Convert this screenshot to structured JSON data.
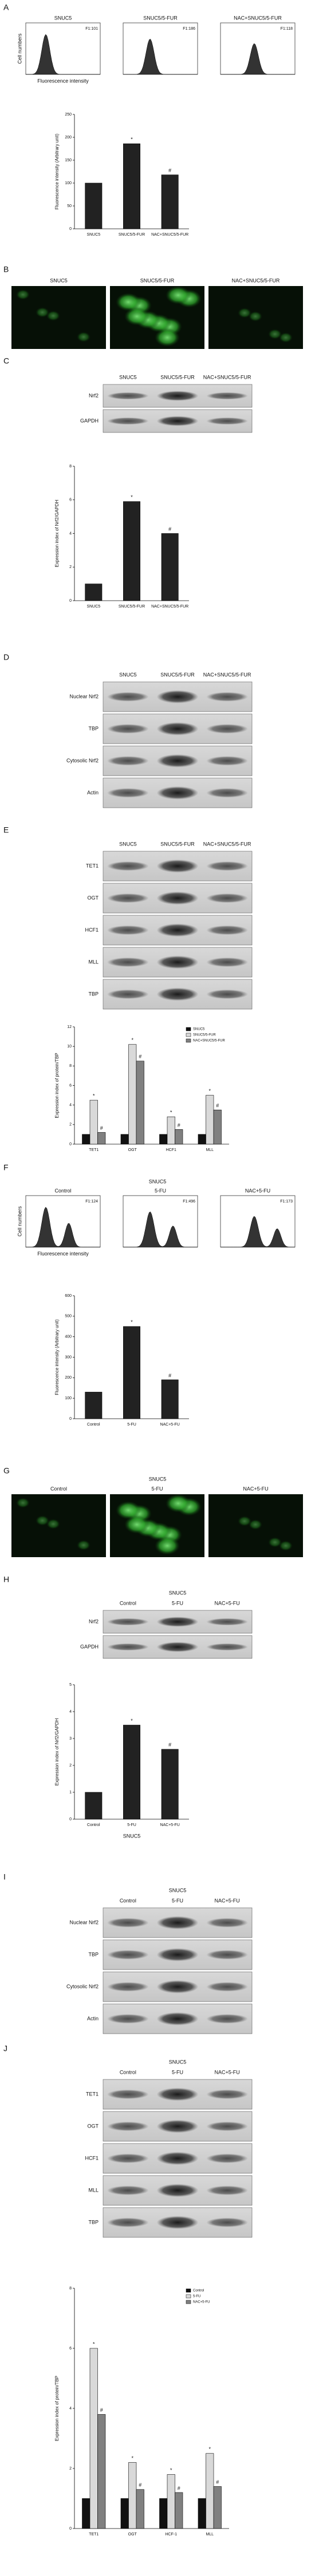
{
  "labels": [
    "A",
    "B",
    "C",
    "D",
    "E",
    "F",
    "G",
    "H",
    "I",
    "J"
  ],
  "histograms": [
    {
      "ylabel": "Cell numbers",
      "xlabel": "Fluorescence intensity",
      "plots": [
        {
          "title": "SNUC5",
          "stat": "F1:101"
        },
        {
          "title": "SNUC5/5-FUR",
          "stat": "F1:186"
        },
        {
          "title": "NAC+SNUC5/5-FUR",
          "stat": "F1:118"
        }
      ]
    },
    {
      "header": "SNUC5",
      "ylabel": "Cell numbers",
      "xlabel": "Fluorescence intensity",
      "plots": [
        {
          "title": "Control",
          "stat": "F1:124"
        },
        {
          "title": "5-FU",
          "stat": "F1:496"
        },
        {
          "title": "NAC+5-FU",
          "stat": "F1:173"
        }
      ]
    }
  ],
  "micrographs": [
    {
      "titles": [
        "SNUC5",
        "SNUC5/5-FUR",
        "NAC+SNUC5/5-FUR"
      ]
    },
    {
      "header": "SNUC5",
      "titles": [
        "Control",
        "5-FU",
        "NAC+5-FU"
      ]
    }
  ],
  "blots": [
    {
      "lanes": [
        "SNUC5",
        "SNUC5/5-FUR",
        "NAC+SNUC5/5-FUR"
      ],
      "rows": [
        "Nrf2",
        "GAPDH"
      ]
    },
    {
      "lanes": [
        "SNUC5",
        "SNUC5/5-FUR",
        "NAC+SNUC5/5-FUR"
      ],
      "rows": [
        "Nuclear Nrf2",
        "TBP",
        "Cytosolic Nrf2",
        "Actin"
      ]
    },
    {
      "lanes": [
        "SNUC5",
        "SNUC5/5-FUR",
        "NAC+SNUC5/5-FUR"
      ],
      "rows": [
        "TET1",
        "OGT",
        "HCF1",
        "MLL",
        "TBP"
      ]
    },
    {
      "header": "SNUC5",
      "lanes": [
        "Control",
        "5-FU",
        "NAC+5-FU"
      ],
      "rows": [
        "Nrf2",
        "GAPDH"
      ]
    },
    {
      "header": "SNUC5",
      "lanes": [
        "Control",
        "5-FU",
        "NAC+5-FU"
      ],
      "rows": [
        "Nuclear Nrf2",
        "TBP",
        "Cytosolic Nrf2",
        "Actin"
      ]
    },
    {
      "header": "SNUC5",
      "lanes": [
        "Control",
        "5-FU",
        "NAC+5-FU"
      ],
      "rows": [
        "TET1",
        "OGT",
        "HCF1",
        "MLL",
        "TBP"
      ]
    }
  ],
  "chart_data": [
    {
      "type": "bar",
      "ylabel": "Fluorescence intensity (Arbitrary unit)",
      "categories": [
        "SNUC5",
        "SNUC5/5-FUR",
        "NAC+SNUC5/5-FUR"
      ],
      "values": [
        100,
        186,
        118
      ],
      "color": "#222222",
      "markers": [
        null,
        "*",
        "#"
      ],
      "ylim": [
        0,
        250
      ],
      "yticks": [
        0,
        50,
        100,
        150,
        200,
        250
      ]
    },
    {
      "type": "bar",
      "ylabel": "Expression index of Nrf2/GAPDH",
      "categories": [
        "SNUC5",
        "SNUC5/5-FUR",
        "NAC+SNUC5/5-FUR"
      ],
      "values": [
        1,
        5.9,
        4
      ],
      "color": "#222222",
      "markers": [
        null,
        "*",
        "#"
      ],
      "ylim": [
        0,
        8
      ],
      "yticks": [
        0,
        2,
        4,
        6,
        8
      ]
    },
    {
      "type": "bar",
      "ylabel": "Expression index of protein/TBP",
      "categories": [
        "TET1",
        "OGT",
        "HCF1",
        "MLL"
      ],
      "series": [
        {
          "name": "SNUC5",
          "color": "#111111",
          "values": [
            1,
            1,
            1,
            1
          ],
          "markers": [
            null,
            null,
            null,
            null
          ]
        },
        {
          "name": "SNUC5/5-FUR",
          "color": "#d9d9d9",
          "values": [
            4.5,
            10.2,
            2.8,
            5
          ],
          "markers": [
            "*",
            "*",
            "*",
            "*"
          ]
        },
        {
          "name": "NAC+SNUC5/5-FUR",
          "color": "#808080",
          "values": [
            1.2,
            8.5,
            1.5,
            3.5
          ],
          "markers": [
            "#",
            "#",
            "#",
            "#"
          ]
        }
      ],
      "ylim": [
        0,
        12
      ],
      "yticks": [
        0,
        2,
        4,
        6,
        8,
        10,
        12
      ]
    },
    {
      "type": "bar",
      "ylabel": "Fluorescence intensity (Arbitrary unit)",
      "categories": [
        "Control",
        "5-FU",
        "NAC+5-FU"
      ],
      "values": [
        130,
        450,
        190
      ],
      "color": "#222222",
      "markers": [
        null,
        "*",
        "#"
      ],
      "ylim": [
        0,
        600
      ],
      "yticks": [
        0,
        100,
        200,
        300,
        400,
        500,
        600
      ]
    },
    {
      "type": "bar",
      "ylabel": "Expression index of Nrf2/GAPDH",
      "xlabel": "SNUC5",
      "categories": [
        "Control",
        "5-FU",
        "NAC+5-FU"
      ],
      "values": [
        1,
        3.5,
        2.6
      ],
      "color": "#222222",
      "markers": [
        null,
        "*",
        "#"
      ],
      "ylim": [
        0,
        5
      ],
      "yticks": [
        0,
        1,
        2,
        3,
        4,
        5
      ]
    },
    {
      "type": "bar",
      "ylabel": "Expression index of protein/TBP",
      "categories": [
        "TET1",
        "OGT",
        "HCF-1",
        "MLL"
      ],
      "series": [
        {
          "name": "Control",
          "color": "#111111",
          "values": [
            1,
            1,
            1,
            1
          ],
          "markers": [
            null,
            null,
            null,
            null
          ]
        },
        {
          "name": "5-FU",
          "color": "#d9d9d9",
          "values": [
            6,
            2.2,
            1.8,
            2.5
          ],
          "markers": [
            "*",
            "*",
            "*",
            "*"
          ]
        },
        {
          "name": "NAC+5-FU",
          "color": "#808080",
          "values": [
            3.8,
            1.3,
            1.2,
            1.4
          ],
          "markers": [
            "#",
            "#",
            "#",
            "#"
          ]
        }
      ],
      "ylim": [
        0,
        8
      ],
      "yticks": [
        0,
        2,
        4,
        6,
        8
      ]
    }
  ]
}
